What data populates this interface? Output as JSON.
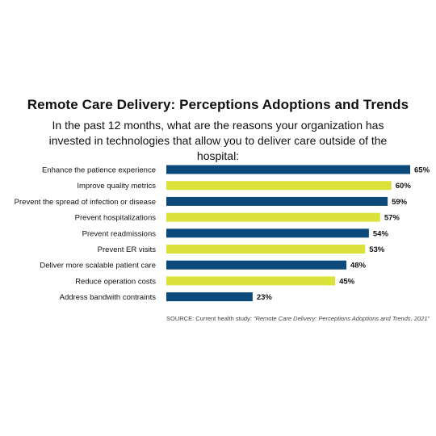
{
  "chart_data": {
    "type": "bar",
    "orientation": "horizontal",
    "title": "Remote Care Delivery: Perceptions Adoptions and Trends",
    "subtitle": "In the past 12 months, what are the reasons your organization has invested in technologies that allow you to deliver care outside of the hospital:",
    "categories": [
      "Enhance the patience experience",
      "Improve quality metrics",
      "Prevent the spread of infection or disease",
      "Prevent hospitalizations",
      "Prevent readmissions",
      "Prevent ER visits",
      "Deliver more scalable patient care",
      "Reduce operation costs",
      "Address bandwith contraints"
    ],
    "values": [
      65,
      60,
      59,
      57,
      54,
      53,
      48,
      45,
      23
    ],
    "value_labels": [
      "65%",
      "60%",
      "59%",
      "57%",
      "54%",
      "53%",
      "48%",
      "45%",
      "23%"
    ],
    "xlim": [
      0,
      65
    ],
    "grid": false,
    "legend": "none",
    "colors": [
      "#0d4a7c",
      "#dbe33a"
    ]
  },
  "source": {
    "prefix": "SOURCE: Current health study: ",
    "citation": "“Remote Care Delivery: Perceptions Adoptions and Trends, 2021”"
  }
}
